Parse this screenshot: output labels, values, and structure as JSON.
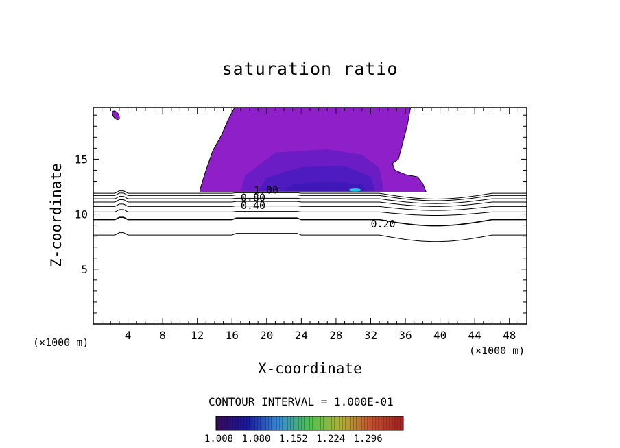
{
  "chart_data": {
    "type": "heatmap",
    "title": "saturation ratio",
    "xlabel": "X-coordinate",
    "ylabel": "Z-coordinate",
    "x_unit": "(x1000 m)",
    "xlim": [
      0,
      50
    ],
    "ylim": [
      0,
      19.7
    ],
    "x_ticks": [
      4,
      8,
      12,
      16,
      20,
      24,
      28,
      32,
      36,
      40,
      44,
      48
    ],
    "y_ticks": [
      5,
      10,
      15
    ],
    "contour_interval_text": "CONTOUR INTERVAL = 1.000E-01",
    "contour_labels": [
      {
        "text": "0.20",
        "x": 32,
        "z": 9.1
      },
      {
        "text": "0.40",
        "x": 17,
        "z": 10.8
      },
      {
        "text": "0.80",
        "x": 17,
        "z": 11.5
      },
      {
        "text": "1.00",
        "x": 18.5,
        "z": 12.2
      }
    ],
    "contour_levels_z": [
      8.1,
      9.5,
      10.2,
      10.7,
      11.1,
      11.4,
      11.7,
      11.9
    ],
    "colorbar": {
      "ticks": [
        "1.008",
        "1.080",
        "1.152",
        "1.224",
        "1.296"
      ],
      "colors": [
        "#3a0a5a",
        "#1a1a9a",
        "#3a8ad0",
        "#50c050",
        "#b0b040",
        "#c05030",
        "#a02020"
      ]
    },
    "shaded_region": {
      "x_range": [
        12.3,
        38.5
      ],
      "z_range": [
        12,
        19.7
      ],
      "fill": "#8e1fc9",
      "core_fill": "#3f19b8",
      "highlight_fill": "#22c8e8"
    }
  },
  "labels": {
    "title": "saturation ratio",
    "xlabel": "X-coordinate",
    "ylabel": "Z-coordinate",
    "x_unit_left": "(×1000 m)",
    "x_unit_right": "(×1000 m)",
    "contour_note": "CONTOUR INTERVAL = 1.000E-01"
  }
}
